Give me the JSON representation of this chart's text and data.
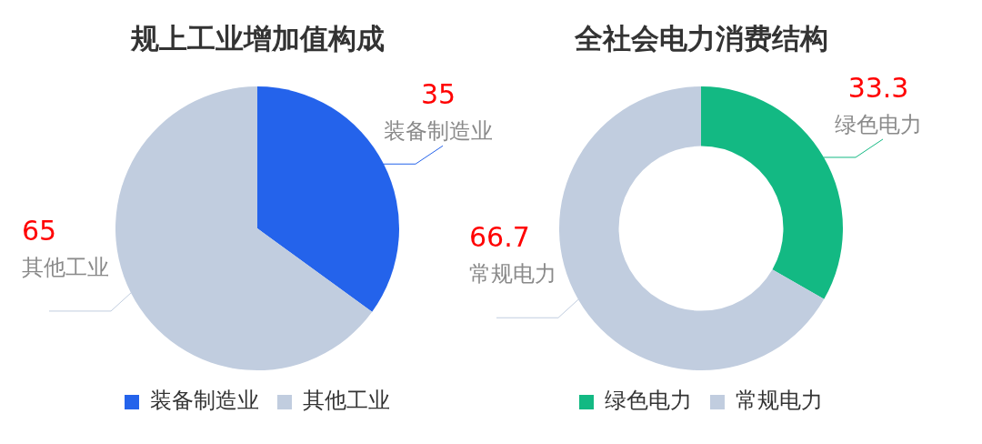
{
  "chart_data": [
    {
      "type": "pie",
      "title": "规上工业增加值构成",
      "categories": [
        "装备制造业",
        "其他工业"
      ],
      "values": [
        35,
        65
      ],
      "colors": [
        "#2463eb",
        "#c1cddf"
      ],
      "data_labels": true,
      "legend": "bottom"
    },
    {
      "type": "donut",
      "title": "全社会电力消费结构",
      "categories": [
        "绿色电力",
        "常规电力"
      ],
      "values": [
        33.3,
        66.7
      ],
      "colors": [
        "#13b983",
        "#c1cddf"
      ],
      "data_labels": true,
      "legend": "bottom"
    }
  ]
}
